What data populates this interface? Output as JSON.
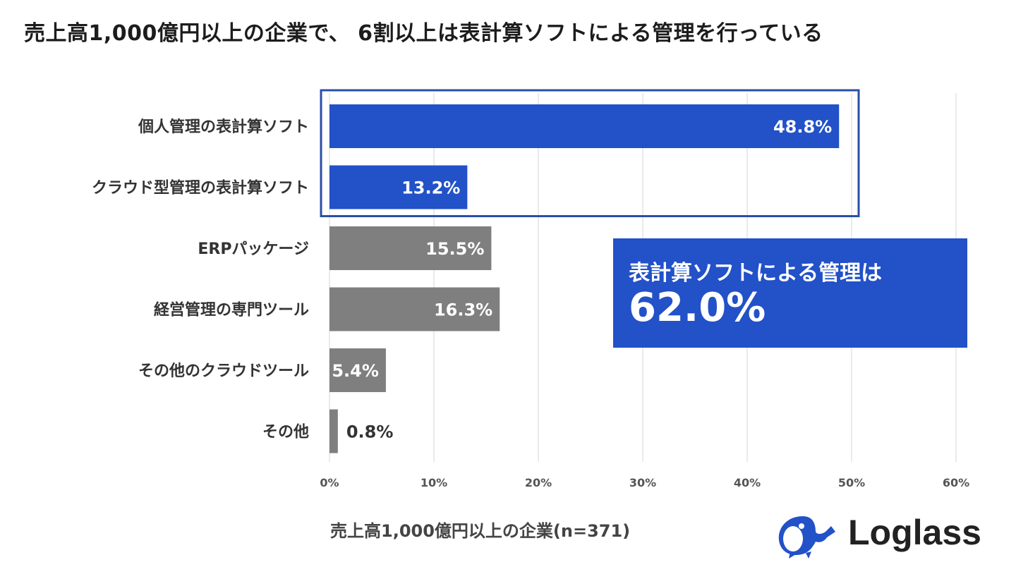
{
  "title": "売上高1,000億円以上の企業で、 6割以上は表計算ソフトによる管理を行っている",
  "chart_data": {
    "type": "bar",
    "orientation": "horizontal",
    "title": "売上高1,000億円以上の企業で、 6割以上は表計算ソフトによる管理を行っている",
    "xlabel": "売上高1,000億円以上の企業(n=371)",
    "ylabel": "",
    "xlim": [
      0,
      60
    ],
    "ticks": [
      "0%",
      "10%",
      "20%",
      "30%",
      "40%",
      "50%",
      "60%"
    ],
    "tick_values": [
      0,
      10,
      20,
      30,
      40,
      50,
      60
    ],
    "grid": true,
    "categories": [
      "個人管理の表計算ソフト",
      "クラウド型管理の表計算ソフト",
      "ERPパッケージ",
      "経営管理の専門ツール",
      "その他のクラウドツール",
      "その他"
    ],
    "values": [
      48.8,
      13.2,
      15.5,
      16.3,
      5.4,
      0.8
    ],
    "labels": [
      "48.8%",
      "13.2%",
      "15.5%",
      "16.3%",
      "5.4%",
      "0.8%"
    ],
    "highlighted": [
      true,
      true,
      false,
      false,
      false,
      false
    ],
    "colors": {
      "highlight": "#2251C8",
      "normal": "#7F7F7F",
      "frame": "#2A4FA8",
      "grid": "#E3E3E3"
    },
    "annotation": {
      "text": "表計算ソフトによる管理は",
      "value": "62.0%"
    }
  },
  "logo": {
    "name": "Loglass",
    "icon": "whale-icon"
  }
}
